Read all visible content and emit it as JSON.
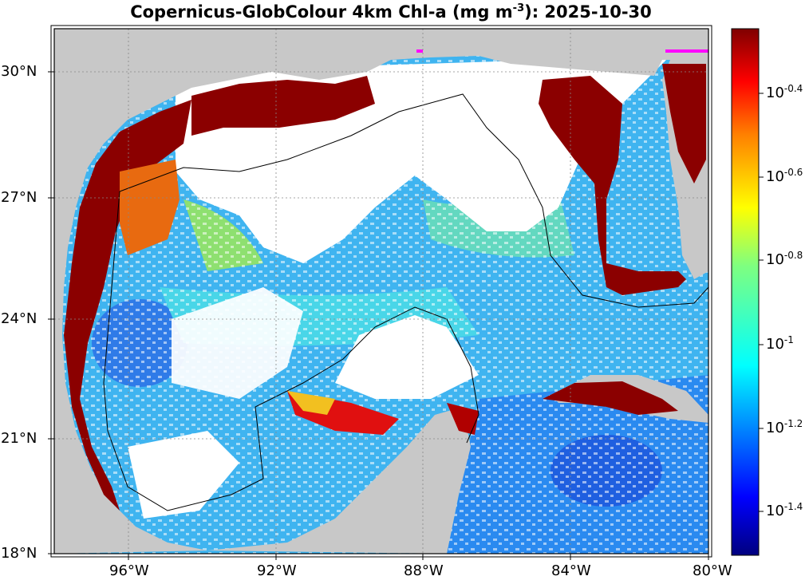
{
  "title": {
    "main": "Copernicus-GlobColour 4km Chl-a (mg m",
    "exponent": "-3",
    "suffix": "): 2025-10-30"
  },
  "axes": {
    "lat_ticks": [
      "30°N",
      "27°N",
      "24°N",
      "21°N",
      "18°N"
    ],
    "lon_ticks": [
      "96°W",
      "92°W",
      "88°W",
      "84°W",
      "80°W"
    ]
  },
  "colorbar": {
    "base": "10",
    "exponents": [
      "-0.4",
      "-0.6",
      "-0.8",
      "-1",
      "-1.2",
      "-1.4"
    ],
    "colors": [
      "#00007f",
      "#0000ff",
      "#007fff",
      "#00ffff",
      "#7fff7f",
      "#ffff00",
      "#ff7f00",
      "#ff0000",
      "#7f0000"
    ]
  },
  "colors": {
    "land": "#c8c8c8",
    "no_data": "#ffffff",
    "high_chl": "#8b0000",
    "outline": "#000000",
    "magenta_marker": "#ff00ff"
  }
}
